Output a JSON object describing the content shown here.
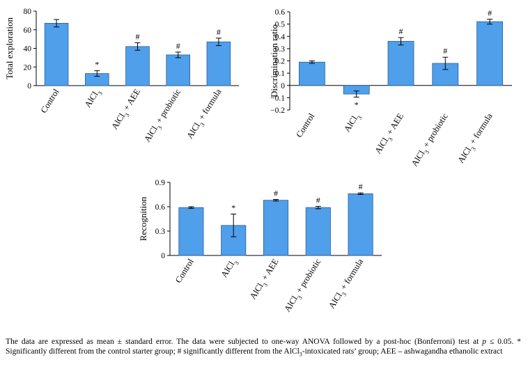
{
  "chart_data": [
    {
      "type": "bar",
      "ylabel": "Total exploration",
      "ylim": [
        0,
        80
      ],
      "yticks": [
        "0",
        "20",
        "40",
        "60",
        "80"
      ],
      "categories": [
        "Control",
        "AlCl3",
        "AlCl3 + AEE",
        "AlCl3 + probiotic",
        "AlCl3 + formula"
      ],
      "values": [
        67,
        13,
        42,
        33,
        47
      ],
      "errors": [
        4,
        3,
        4,
        3,
        4
      ],
      "annotations": [
        "",
        "*",
        "#",
        "#",
        "#"
      ],
      "grid": false,
      "bar_color": "#4F9FEA"
    },
    {
      "type": "bar",
      "ylabel": "Discrimination ratio",
      "ylim": [
        -0.2,
        0.6
      ],
      "yticks": [
        "−0.2",
        "−0.1",
        "0",
        "0.1",
        "0.2",
        "0.3",
        "0.4",
        "0.5",
        "0.6"
      ],
      "categories": [
        "Control",
        "AlCl3",
        "AlCl3 + AEE",
        "AlCl3 + probiotic",
        "AlCl3 + formula"
      ],
      "values": [
        0.19,
        -0.07,
        0.36,
        0.18,
        0.52
      ],
      "errors": [
        0.01,
        0.025,
        0.03,
        0.05,
        0.02
      ],
      "annotations": [
        "",
        "*",
        "#",
        "#",
        "#"
      ],
      "grid": false,
      "bar_color": "#4F9FEA"
    },
    {
      "type": "bar",
      "ylabel": "Recognition",
      "ylim": [
        0,
        0.9
      ],
      "yticks": [
        "0",
        "0.3",
        "0.6",
        "0.9"
      ],
      "categories": [
        "Control",
        "AlCl3",
        "AlCl3 + AEE",
        "AlCl3 + probiotic",
        "AlCl3 + formula"
      ],
      "values": [
        0.59,
        0.37,
        0.68,
        0.59,
        0.76
      ],
      "errors": [
        0.01,
        0.14,
        0.01,
        0.015,
        0.01
      ],
      "annotations": [
        "",
        "*",
        "#",
        "#",
        "#"
      ],
      "grid": false,
      "bar_color": "#4F9FEA"
    }
  ],
  "caption": {
    "line1": "The data are expressed as mean ± standard error. The data were subjected to one-way ANOVA followed by a post-hoc (Bonferroni) test at ",
    "p_symbol": "p",
    "line2": " ≤ 0.05. * Significantly different from the control starter group; # significantly different from the AlCl",
    "sub3": "3",
    "line3": "-intoxicated rats’ group; AEE – ashwagandha ethanolic extract"
  }
}
